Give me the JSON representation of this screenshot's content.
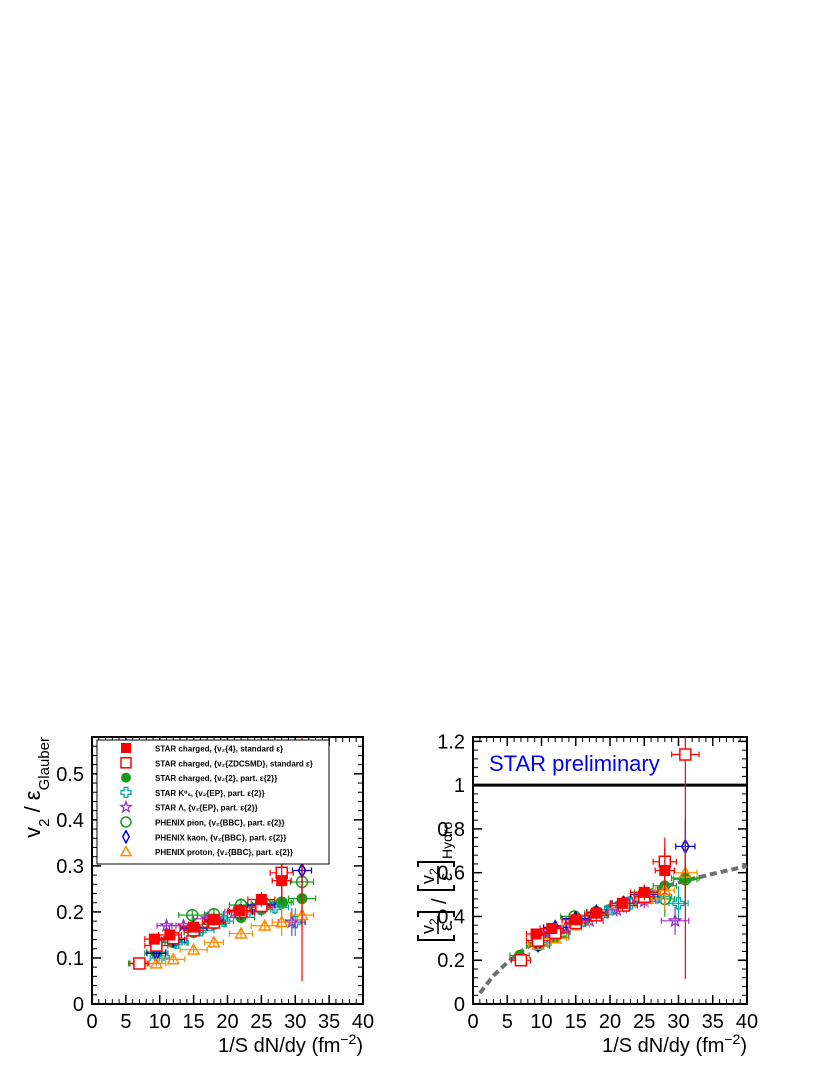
{
  "chart_data": [
    {
      "type": "scatter",
      "panel": "left",
      "xlabel": "1/S dN/dy (fm",
      "xlabel_sup": "−2",
      "xlabel_close": ")",
      "ylabel_main": "v",
      "ylabel_sub": "2",
      "ylabel_mid": " / ε",
      "ylabel_sub2": "Glauber",
      "xlim": [
        0,
        40
      ],
      "ylim": [
        0,
        0.58
      ],
      "xticks": [
        0,
        5,
        10,
        15,
        20,
        25,
        30,
        35,
        40
      ],
      "xtick_labels": [
        "0",
        "5",
        "10",
        "15",
        "20",
        "25",
        "30",
        "35",
        "40"
      ],
      "yticks": [
        0,
        0.1,
        0.2,
        0.3,
        0.4,
        0.5
      ],
      "ytick_labels": [
        "0",
        "0.1",
        "0.2",
        "0.3",
        "0.4",
        "0.5"
      ],
      "legend_position": "top-left",
      "series": [
        {
          "name": "STAR charged, {v2{4}, standard ε}",
          "legend_text": "STAR charged, {v₂{4}, standard ε}",
          "marker": "filled-square",
          "color": "#ff0000",
          "points": [
            [
              9.2,
              0.141
            ],
            [
              11.5,
              0.15
            ],
            [
              15.0,
              0.167
            ],
            [
              18.0,
              0.183
            ],
            [
              21.8,
              0.203
            ],
            [
              25.0,
              0.227
            ],
            [
              28.0,
              0.268
            ]
          ]
        },
        {
          "name": "STAR charged, {v2{ZDCSMD}, standard ε}",
          "legend_text": "STAR charged, {v₂{ZDCSMD}, standard ε}",
          "marker": "open-square",
          "color": "#ff0000",
          "points": [
            [
              7.0,
              0.088
            ],
            [
              9.5,
              0.127
            ],
            [
              12.0,
              0.143
            ],
            [
              15.0,
              0.16
            ],
            [
              18.0,
              0.177
            ],
            [
              22.0,
              0.2
            ],
            [
              25.0,
              0.213
            ],
            [
              28.0,
              0.285
            ],
            [
              31.0,
              0.497
            ]
          ]
        },
        {
          "name": "STAR charged, {v2{2}, part. ε{2}}",
          "legend_text": "STAR charged, {v₂{2}, part. ε{2}}",
          "marker": "filled-circle",
          "color": "#1a9a1a",
          "points": [
            [
              6.8,
              0.088
            ],
            [
              9.5,
              0.11
            ],
            [
              12.0,
              0.133
            ],
            [
              15.0,
              0.155
            ],
            [
              18.0,
              0.173
            ],
            [
              22.0,
              0.188
            ],
            [
              25.0,
              0.205
            ],
            [
              28.0,
              0.221
            ],
            [
              31.0,
              0.229
            ]
          ]
        },
        {
          "name": "STAR K0s, {v2{EP}, part. ε{2}}",
          "legend_text": "STAR K⁰ₛ, {v₂{EP}, part. ε{2}}",
          "marker": "open-cross",
          "color": "#00aaaa",
          "points": [
            [
              10.0,
              0.1
            ],
            [
              12.5,
              0.133
            ],
            [
              16.0,
              0.16
            ],
            [
              19.5,
              0.18
            ],
            [
              23.0,
              0.2
            ],
            [
              27.0,
              0.21
            ],
            [
              30.0,
              0.178
            ]
          ]
        },
        {
          "name": "STAR Λ, {v2{EP}, part. ε{2}}",
          "legend_text": "STAR Λ, {v₂{EP}, part. ε{2}}",
          "marker": "open-star",
          "color": "#9933cc",
          "points": [
            [
              11.0,
              0.17
            ],
            [
              13.5,
              0.17
            ],
            [
              17.0,
              0.185
            ],
            [
              21.0,
              0.2
            ],
            [
              25.0,
              0.21
            ],
            [
              29.5,
              0.178
            ]
          ]
        },
        {
          "name": "PHENIX pion, {v2{BBC}, part. ε{2}}",
          "legend_text": "PHENIX pion, {v₂{BBC}, part. ε{2}}",
          "marker": "open-circle",
          "color": "#1a9a1a",
          "points": [
            [
              9.5,
              0.113
            ],
            [
              12.0,
              0.135
            ],
            [
              14.8,
              0.193
            ],
            [
              18.0,
              0.195
            ],
            [
              22.0,
              0.215
            ],
            [
              25.5,
              0.218
            ],
            [
              28.0,
              0.22
            ],
            [
              31.0,
              0.265
            ]
          ]
        },
        {
          "name": "PHENIX kaon, {v2{BBC}, part. ε{2}}",
          "legend_text": "PHENIX kaon, {v₂{BBC}, part. ε{2}}",
          "marker": "open-diamond",
          "color": "#0000cc",
          "points": [
            [
              9.5,
              0.11
            ],
            [
              12.0,
              0.14
            ],
            [
              15.0,
              0.165
            ],
            [
              18.0,
              0.18
            ],
            [
              22.0,
              0.2
            ],
            [
              25.0,
              0.215
            ],
            [
              31.0,
              0.29
            ]
          ]
        },
        {
          "name": "PHENIX proton, {v2{BBC}, part. ε{2}}",
          "legend_text": "PHENIX proton, {v₂{BBC}, part. ε{2}}",
          "marker": "open-triangle",
          "color": "#ff8c00",
          "points": [
            [
              9.5,
              0.088
            ],
            [
              12.0,
              0.097
            ],
            [
              15.0,
              0.118
            ],
            [
              18.0,
              0.134
            ],
            [
              22.0,
              0.153
            ],
            [
              25.5,
              0.17
            ],
            [
              28.0,
              0.178
            ],
            [
              31.0,
              0.193
            ]
          ]
        }
      ]
    },
    {
      "type": "scatter",
      "panel": "right",
      "xlabel": "1/S dN/dy (fm",
      "xlabel_sup": "−2",
      "xlabel_close": ")",
      "ylabel_num": "v",
      "ylabel_num_sub": "2",
      "ylabel_den": "ε",
      "ylabel_sub": "Hydro",
      "annotation": "STAR preliminary",
      "annotation_color": "#0000ee",
      "reference_line_y": 1.0,
      "curve": [
        [
          1.0,
          0.05
        ],
        [
          3,
          0.13
        ],
        [
          5,
          0.19
        ],
        [
          7,
          0.24
        ],
        [
          10,
          0.3
        ],
        [
          13,
          0.355
        ],
        [
          16,
          0.4
        ],
        [
          20,
          0.45
        ],
        [
          25,
          0.51
        ],
        [
          30,
          0.555
        ],
        [
          35,
          0.595
        ],
        [
          40,
          0.63
        ]
      ],
      "xlim": [
        0,
        40
      ],
      "ylim": [
        0,
        1.22
      ],
      "xticks": [
        0,
        5,
        10,
        15,
        20,
        25,
        30,
        35,
        40
      ],
      "xtick_labels": [
        "0",
        "5",
        "10",
        "15",
        "20",
        "25",
        "30",
        "35",
        "40"
      ],
      "yticks": [
        0,
        0.2,
        0.4,
        0.6,
        0.8,
        1.0,
        1.2
      ],
      "ytick_labels": [
        "0",
        "0.2",
        "0.4",
        "0.6",
        "0.8",
        "1",
        "1.2"
      ],
      "series": [
        {
          "name": "STAR charged, {v2{4}, standard ε}",
          "marker": "filled-square",
          "color": "#ff0000",
          "points": [
            [
              9.2,
              0.32
            ],
            [
              11.5,
              0.345
            ],
            [
              15.0,
              0.385
            ],
            [
              18.0,
              0.415
            ],
            [
              21.8,
              0.46
            ],
            [
              25.0,
              0.51
            ],
            [
              28.0,
              0.61
            ]
          ]
        },
        {
          "name": "STAR charged, {v2{ZDCSMD}, standard ε}",
          "marker": "open-square",
          "color": "#ff0000",
          "points": [
            [
              7.0,
              0.2
            ],
            [
              9.5,
              0.29
            ],
            [
              12.0,
              0.325
            ],
            [
              15.0,
              0.37
            ],
            [
              18.0,
              0.405
            ],
            [
              22.0,
              0.45
            ],
            [
              25.0,
              0.49
            ],
            [
              28.0,
              0.65
            ],
            [
              31.0,
              1.14
            ]
          ]
        },
        {
          "name": "STAR charged, {v2{2}, part. ε{2}}",
          "marker": "filled-circle",
          "color": "#1a9a1a",
          "points": [
            [
              6.8,
              0.222
            ],
            [
              9.5,
              0.265
            ],
            [
              12.0,
              0.305
            ],
            [
              15.0,
              0.39
            ],
            [
              18.0,
              0.415
            ],
            [
              22.0,
              0.46
            ],
            [
              25.0,
              0.51
            ],
            [
              28.0,
              0.54
            ],
            [
              31.0,
              0.575
            ]
          ]
        },
        {
          "name": "STAR K0s, {v2{EP}, part. ε{2}}",
          "marker": "open-cross",
          "color": "#00aaaa",
          "points": [
            [
              10.0,
              0.28
            ],
            [
              12.5,
              0.33
            ],
            [
              16.0,
              0.38
            ],
            [
              19.5,
              0.42
            ],
            [
              23.0,
              0.46
            ],
            [
              27.0,
              0.49
            ],
            [
              30.0,
              0.46
            ]
          ]
        },
        {
          "name": "STAR Λ, {v2{EP}, part. ε{2}}",
          "marker": "open-star",
          "color": "#9933cc",
          "points": [
            [
              11.0,
              0.33
            ],
            [
              13.5,
              0.35
            ],
            [
              17.0,
              0.38
            ],
            [
              21.0,
              0.43
            ],
            [
              25.0,
              0.47
            ],
            [
              29.5,
              0.38
            ]
          ]
        },
        {
          "name": "PHENIX pion, {v2{BBC}, part. ε{2}}",
          "marker": "open-circle",
          "color": "#1a9a1a",
          "points": [
            [
              9.5,
              0.28
            ],
            [
              12.0,
              0.31
            ],
            [
              14.8,
              0.4
            ],
            [
              18.0,
              0.42
            ],
            [
              22.0,
              0.46
            ],
            [
              25.5,
              0.49
            ],
            [
              28.0,
              0.48
            ],
            [
              31.0,
              0.57
            ]
          ]
        },
        {
          "name": "PHENIX kaon, {v2{BBC}, part. ε{2}}",
          "marker": "open-diamond",
          "color": "#0000cc",
          "points": [
            [
              9.5,
              0.27
            ],
            [
              12.0,
              0.35
            ],
            [
              15.0,
              0.39
            ],
            [
              18.0,
              0.42
            ],
            [
              22.0,
              0.46
            ],
            [
              25.0,
              0.5
            ],
            [
              31.0,
              0.72
            ]
          ]
        },
        {
          "name": "PHENIX proton, {v2{BBC}, part. ε{2}}",
          "marker": "open-triangle",
          "color": "#ff8c00",
          "points": [
            [
              9.5,
              0.27
            ],
            [
              12.0,
              0.3
            ],
            [
              15.0,
              0.36
            ],
            [
              18.0,
              0.41
            ],
            [
              22.0,
              0.45
            ],
            [
              25.5,
              0.48
            ],
            [
              28.0,
              0.52
            ],
            [
              31.0,
              0.6
            ]
          ]
        }
      ]
    }
  ]
}
